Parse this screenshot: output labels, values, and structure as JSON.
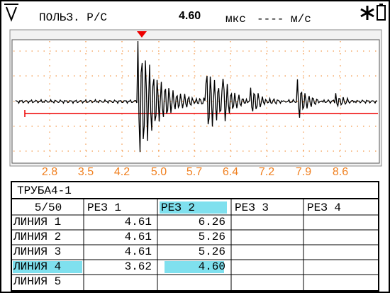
{
  "header": {
    "mode": "ПОЛЬЗ. Р/С",
    "value": "4.60",
    "unit": "мкс",
    "velocity": "----",
    "velocity_unit": "м/с"
  },
  "scope": {
    "x_ticks": [
      "2.8",
      "3.5",
      "4.2",
      "5.0",
      "5.7",
      "6.4",
      "7.2",
      "7.9",
      "8.6"
    ]
  },
  "table": {
    "title": "ТРУБА4-1",
    "counter": "5/50",
    "columns": [
      "РЕЗ  1",
      "РЕЗ  2",
      "РЕЗ  3",
      "РЕЗ  4"
    ],
    "rows": [
      {
        "label": "ЛИНИЯ 1",
        "values": [
          "4.61",
          "6.26"
        ]
      },
      {
        "label": "ЛИНИЯ 2",
        "values": [
          "4.61",
          "5.26"
        ]
      },
      {
        "label": "ЛИНИЯ 3",
        "values": [
          "4.61",
          "5.26"
        ]
      },
      {
        "label": "ЛИНИЯ 4",
        "values": [
          "3.62",
          "4.60"
        ]
      },
      {
        "label": "ЛИНИЯ 5",
        "values": []
      }
    ]
  }
}
